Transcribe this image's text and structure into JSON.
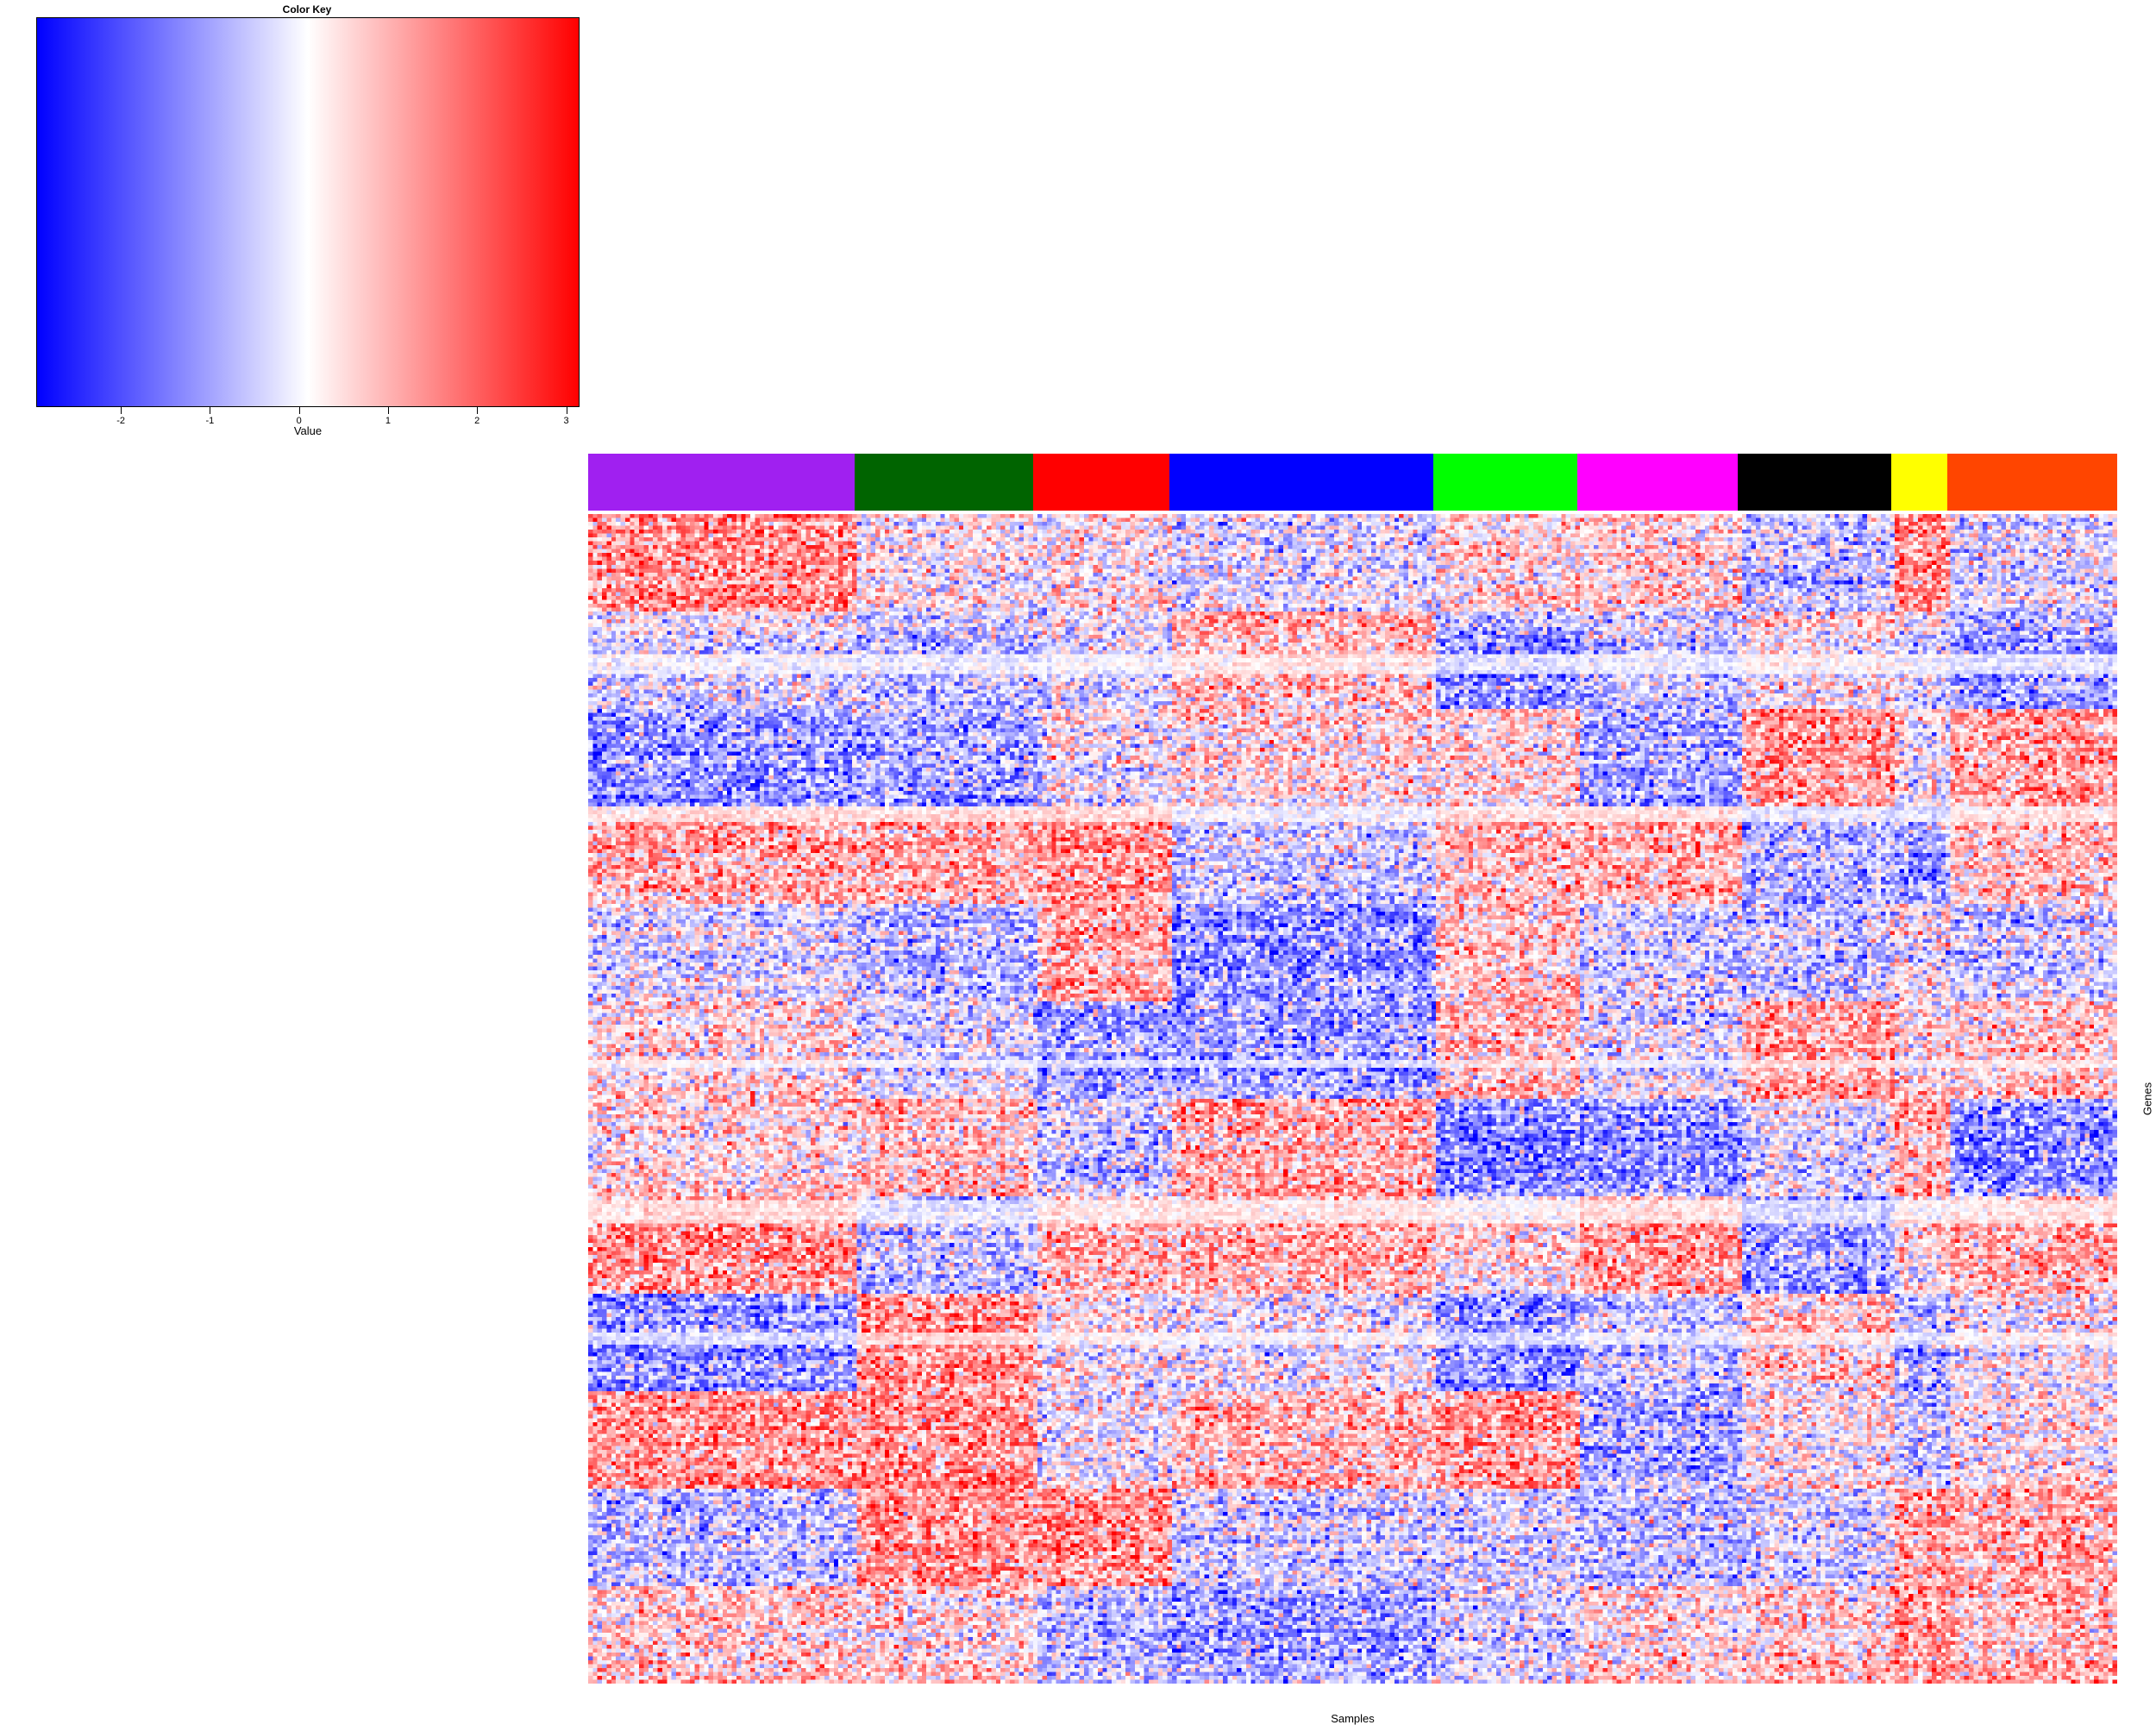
{
  "chart_data": {
    "type": "heatmap",
    "color_key": {
      "title": "Color Key",
      "xlabel": "Value",
      "ticks": [
        "-2",
        "-1",
        "0",
        "1",
        "2",
        "3"
      ],
      "tick_values": [
        -2,
        -1,
        0,
        1,
        2,
        3
      ],
      "range": [
        -2.95,
        3.15
      ],
      "colors": [
        "#0000ff",
        "#ffffff",
        "#ff0000"
      ]
    },
    "xlabel": "Samples",
    "ylabel": "Genes",
    "sample_groups": [
      {
        "color": "#a020f0",
        "fraction": 0.174
      },
      {
        "color": "#006400",
        "fraction": 0.117
      },
      {
        "color": "#ff0000",
        "fraction": 0.089
      },
      {
        "color": "#0000ff",
        "fraction": 0.173
      },
      {
        "color": "#00ff00",
        "fraction": 0.094
      },
      {
        "color": "#ff00ff",
        "fraction": 0.105
      },
      {
        "color": "#000000",
        "fraction": 0.1
      },
      {
        "color": "#ffff00",
        "fraction": 0.037
      },
      {
        "color": "#ff4500",
        "fraction": 0.111
      }
    ]
  }
}
